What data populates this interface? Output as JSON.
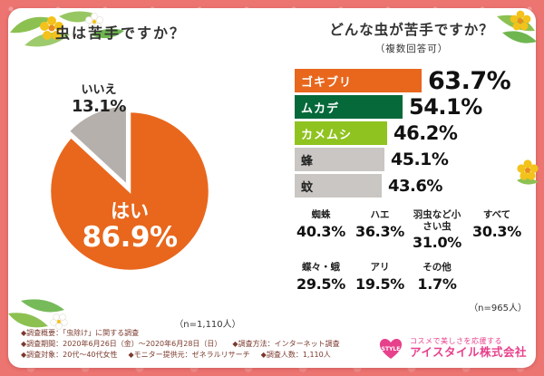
{
  "chart_data": [
    {
      "type": "pie",
      "title": "虫は苦手ですか？",
      "n_label": "（n=1,110人）",
      "legend_position": "none",
      "slices": [
        {
          "label": "はい",
          "value": 86.9,
          "display": "86.9%",
          "color": "#e8671d",
          "text_color": "#ffffff",
          "exploded": false
        },
        {
          "label": "いいえ",
          "value": 13.1,
          "display": "13.1%",
          "color": "#b5b0ac",
          "text_color": "#222222",
          "exploded": true
        }
      ]
    },
    {
      "type": "bar",
      "title": "どんな虫が苦手ですか？",
      "subtitle": "（複数回答可）",
      "n_label": "（n=965人）",
      "xlim": [
        0,
        100
      ],
      "bars": [
        {
          "label": "ゴキブリ",
          "value": 63.7,
          "display": "63.7%",
          "color": "#e8671d",
          "label_text_color": "#ffffff"
        },
        {
          "label": "ムカデ",
          "value": 54.1,
          "display": "54.1%",
          "color": "#05693a",
          "label_text_color": "#ffffff"
        },
        {
          "label": "カメムシ",
          "value": 46.2,
          "display": "46.2%",
          "color": "#8fc31f",
          "label_text_color": "#ffffff"
        },
        {
          "label": "蜂",
          "value": 45.1,
          "display": "45.1%",
          "color": "#c9c6c3",
          "label_text_color": "#222222"
        },
        {
          "label": "蚊",
          "value": 43.6,
          "display": "43.6%",
          "color": "#c9c6c3",
          "label_text_color": "#222222"
        }
      ],
      "others": [
        {
          "label": "蜘蛛",
          "value": 40.3,
          "display": "40.3%"
        },
        {
          "label": "ハエ",
          "value": 36.3,
          "display": "36.3%"
        },
        {
          "label": "羽虫など小さい虫",
          "value": 31.0,
          "display": "31.0%"
        },
        {
          "label": "すべて",
          "value": 30.3,
          "display": "30.3%"
        },
        {
          "label": "蝶々・蛾",
          "value": 29.5,
          "display": "29.5%"
        },
        {
          "label": "アリ",
          "value": 19.5,
          "display": "19.5%"
        },
        {
          "label": "その他",
          "value": 1.7,
          "display": "1.7%"
        }
      ]
    }
  ],
  "footer": {
    "text_color": "#7b3a2d",
    "rows": [
      [
        "◆調査概要：「虫除け」に関する調査"
      ],
      [
        "◆調査期間：2020年6月26日（金）～2020年6月28日（日）",
        "◆調査方法：インターネット調査"
      ],
      [
        "◆調査対象：20代～40代女性",
        "◆モニター提供元：ゼネラルリサーチ",
        "◆調査人数：1,110人"
      ]
    ]
  },
  "logo": {
    "brand": "STYLE",
    "tagline": "コスメで美しさを応援する",
    "company": "アイスタイル株式会社",
    "color": "#e7418c"
  }
}
